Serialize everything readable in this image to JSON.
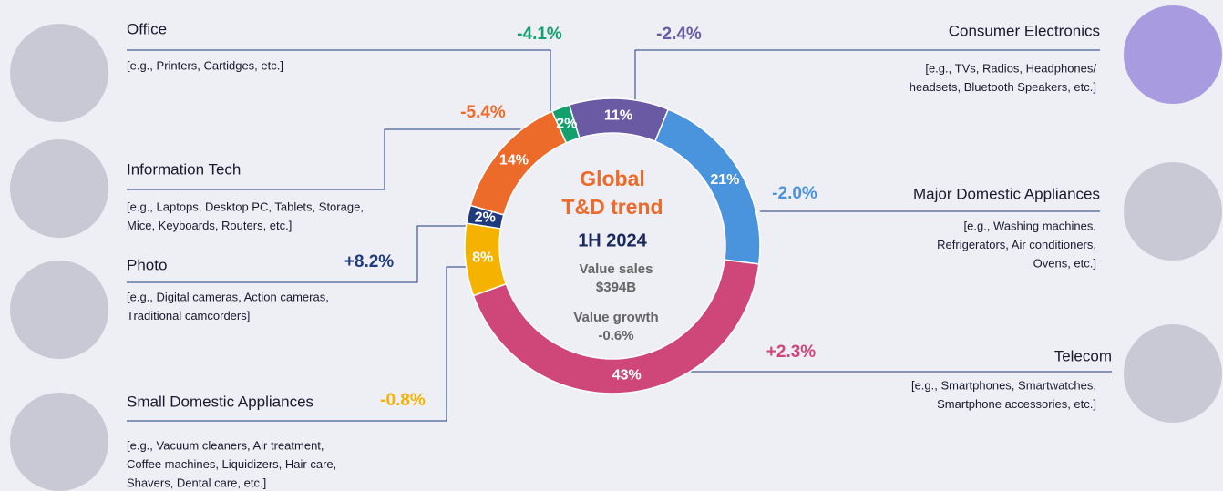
{
  "chart_data": {
    "type": "pie",
    "categories": [
      "Consumer Electronics",
      "Major Domestic Appliances",
      "Telecom",
      "Small Domestic Appliances",
      "Photo",
      "Information Tech",
      "Office"
    ],
    "values": [
      11,
      21,
      43,
      8,
      2,
      14,
      2
    ],
    "value_labels": [
      "11%",
      "21%",
      "43%",
      "8%",
      "2%",
      "14%",
      "2%"
    ],
    "colors": [
      "#6a5aa3",
      "#4a94de",
      "#cf4679",
      "#f5b300",
      "#1f3b7d",
      "#ec6a2a",
      "#13a06c"
    ],
    "growth_labels": [
      "-2.4%",
      "-2.0%",
      "+2.3%",
      "-0.8%",
      "+8.2%",
      "-5.4%",
      "-4.1%"
    ],
    "descriptions": [
      [
        "[e.g., TVs, Radios, Headphones/",
        "headsets, Bluetooth Speakers, etc.]"
      ],
      [
        "[e.g., Washing machines,",
        "Refrigerators, Air conditioners,",
        "Ovens, etc.]"
      ],
      [
        "[e.g., Smartphones, Smartwatches,",
        "Smartphone accessories, etc.]"
      ],
      [
        "[e.g., Vacuum cleaners, Air treatment,",
        "Coffee machines, Liquidizers, Hair care,",
        "Shavers, Dental care, etc.]"
      ],
      [
        "[e.g., Digital cameras, Action cameras,",
        "Traditional camcorders]"
      ],
      [
        "[e.g., Laptops, Desktop PC, Tablets, Storage,",
        "Mice, Keyboards, Routers, etc.]"
      ],
      [
        "[e.g., Printers, Cartidges, etc.]"
      ]
    ],
    "center": {
      "title_lines": [
        "Global",
        "T&D trend"
      ],
      "period": "1H 2024",
      "sales_label": "Value sales",
      "sales_value": "$394B",
      "growth_label": "Value growth",
      "growth_value": "-0.6%"
    }
  }
}
